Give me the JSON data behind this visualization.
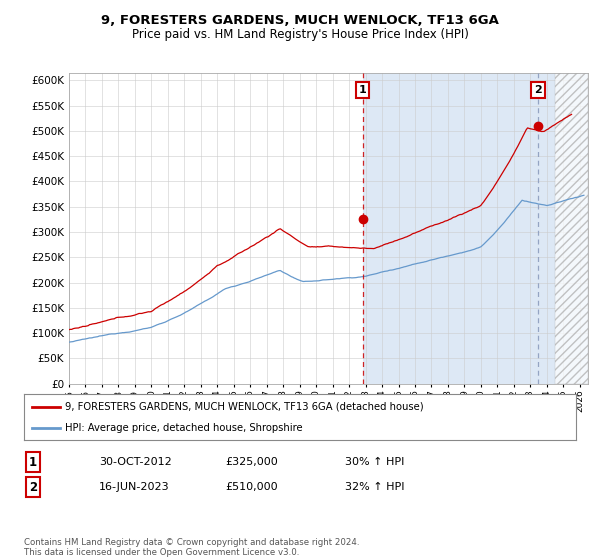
{
  "title": "9, FORESTERS GARDENS, MUCH WENLOCK, TF13 6GA",
  "subtitle": "Price paid vs. HM Land Registry's House Price Index (HPI)",
  "plot_bg_color": "#dde8f5",
  "plot_bg_color_left": "#ffffff",
  "grid_color": "#cccccc",
  "ylabel_ticks": [
    "£0",
    "£50K",
    "£100K",
    "£150K",
    "£200K",
    "£250K",
    "£300K",
    "£350K",
    "£400K",
    "£450K",
    "£500K",
    "£550K",
    "£600K"
  ],
  "ytick_values": [
    0,
    50000,
    100000,
    150000,
    200000,
    250000,
    300000,
    350000,
    400000,
    450000,
    500000,
    550000,
    600000
  ],
  "ylim": [
    0,
    615000
  ],
  "xlim_start": 1995.0,
  "xlim_end": 2026.5,
  "red_line_color": "#cc0000",
  "blue_line_color": "#6699cc",
  "marker_color": "#cc0000",
  "sale1_x": 2012.83,
  "sale1_y": 325000,
  "sale2_x": 2023.46,
  "sale2_y": 510000,
  "sale1_label": "1",
  "sale2_label": "2",
  "legend1": "9, FORESTERS GARDENS, MUCH WENLOCK, TF13 6GA (detached house)",
  "legend2": "HPI: Average price, detached house, Shropshire",
  "note1_num": "1",
  "note1_date": "30-OCT-2012",
  "note1_price": "£325,000",
  "note1_hpi": "30% ↑ HPI",
  "note2_num": "2",
  "note2_date": "16-JUN-2023",
  "note2_price": "£510,000",
  "note2_hpi": "32% ↑ HPI",
  "footer": "Contains HM Land Registry data © Crown copyright and database right 2024.\nThis data is licensed under the Open Government Licence v3.0.",
  "hatch_start": 2024.5
}
